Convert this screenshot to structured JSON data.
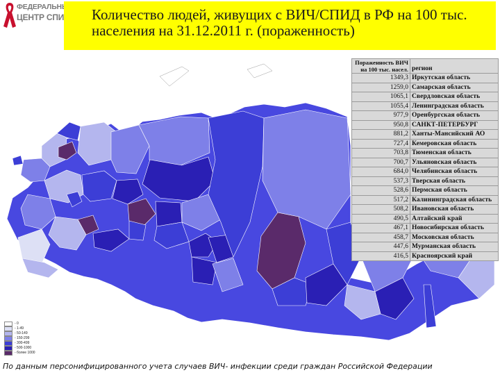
{
  "logo": {
    "line1": "ФЕДЕРАЛЬНЫЙ",
    "line2": "ЦЕНТР СПИД"
  },
  "title": "Количество людей, живущих с ВИЧ/СПИД в РФ на 100 тыс. населения на 31.12.2011 г. (пораженность)",
  "table": {
    "header_value": "Пораженность ВИЧ на 100 тыс. насел.",
    "header_region": "регион",
    "rows": [
      {
        "value": "1349,3",
        "region": "Иркутская область"
      },
      {
        "value": "1259,0",
        "region": "Самарская область"
      },
      {
        "value": "1065,1",
        "region": "Свердловская область"
      },
      {
        "value": "1055,4",
        "region": "Ленинградская область"
      },
      {
        "value": "977,9",
        "region": "Оренбургская область"
      },
      {
        "value": "950,8",
        "region": "САНКТ-ПЕТЕРБУРГ"
      },
      {
        "value": "881,2",
        "region": "Ханты-Мансийский АО"
      },
      {
        "value": "727,4",
        "region": "Кемеровская область"
      },
      {
        "value": "703,8",
        "region": "Тюменская область"
      },
      {
        "value": "700,7",
        "region": "Ульяновская область"
      },
      {
        "value": "684,0",
        "region": "Челябинская область"
      },
      {
        "value": "537,3",
        "region": "Тверская область"
      },
      {
        "value": "528,6",
        "region": "Пермская область"
      },
      {
        "value": "517,2",
        "region": "Калининградская область"
      },
      {
        "value": "508,2",
        "region": "Ивановская область"
      },
      {
        "value": "490,5",
        "region": "Алтайский край"
      },
      {
        "value": "467,1",
        "region": "Новосибирская область"
      },
      {
        "value": "458,7",
        "region": "Московская область"
      },
      {
        "value": "447,6",
        "region": "Мурманская область"
      },
      {
        "value": "416,5",
        "region": "Красноярский край"
      }
    ]
  },
  "legend": [
    {
      "label": "- 0",
      "color": "#ffffff"
    },
    {
      "label": "- 1-49",
      "color": "#dde0f5"
    },
    {
      "label": "- 50-149",
      "color": "#b4b6ee"
    },
    {
      "label": "- 150-299",
      "color": "#7e80e8"
    },
    {
      "label": "- 300-499",
      "color": "#3c3ed6"
    },
    {
      "label": "- 500-1000",
      "color": "#2a1fb4"
    },
    {
      "label": "- более 1000",
      "color": "#5a2a6a"
    }
  ],
  "footer": "По данным персонифицированного учета случаев ВИЧ- инфекции среди граждан Российской Федерации",
  "colors": {
    "title_background": "#ffff00",
    "table_background": "#d9d9d9",
    "ribbon": "#c8102e",
    "region_colors": [
      "#ffffff",
      "#dde0f5",
      "#b4b6ee",
      "#7e80e8",
      "#3c3ed6",
      "#2a1fb4",
      "#5a2a6a"
    ]
  }
}
